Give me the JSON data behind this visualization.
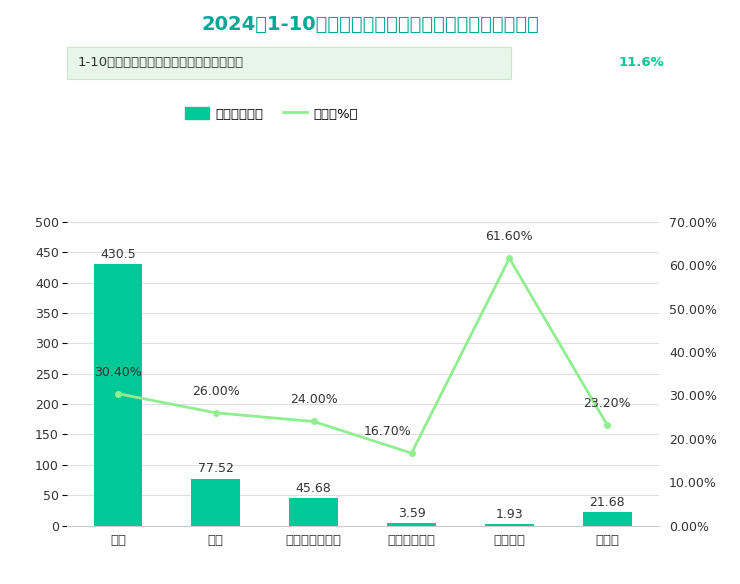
{
  "title": "2024年1-10月武威市规模以上工业产品产量及增长情况",
  "subtitle_text": "1-10月，全市规模以上工业增加值同比增长",
  "subtitle_highlight": "11.6%",
  "categories": [
    "原煤",
    "洗煤",
    "石墨及碳素制品",
    "化学农药原药",
    "塑料制品",
    "乳制品"
  ],
  "bar_values": [
    430.5,
    77.52,
    45.68,
    3.59,
    1.93,
    21.68
  ],
  "bar_labels": [
    "430.5",
    "77.52",
    "45.68",
    "3.59",
    "1.93",
    "21.68"
  ],
  "growth_values": [
    30.4,
    26.0,
    24.0,
    16.7,
    61.6,
    23.2
  ],
  "growth_labels": [
    "30.40%",
    "26.00%",
    "24.00%",
    "16.70%",
    "61.60%",
    "23.20%"
  ],
  "bar_color": "#00C896",
  "line_color": "#90EE90",
  "title_color": "#00A896",
  "subtitle_box_color": "#E8F5E9",
  "subtitle_text_color": "#333333",
  "subtitle_highlight_color": "#00C896",
  "ylim_left": [
    0,
    500
  ],
  "ylim_right": [
    0,
    70
  ],
  "yticks_left": [
    0,
    50,
    100,
    150,
    200,
    250,
    300,
    350,
    400,
    450,
    500
  ],
  "yticks_right": [
    0,
    10,
    20,
    30,
    40,
    50,
    60,
    70
  ],
  "ytick_right_labels": [
    "0.00%",
    "10.00%",
    "20.00%",
    "30.00%",
    "40.00%",
    "50.00%",
    "60.00%",
    "70.00%"
  ],
  "legend_bar_label": "产量（万吨）",
  "legend_line_label": "增长（%）",
  "background_color": "#ffffff",
  "grid_color": "#e0e0e0"
}
